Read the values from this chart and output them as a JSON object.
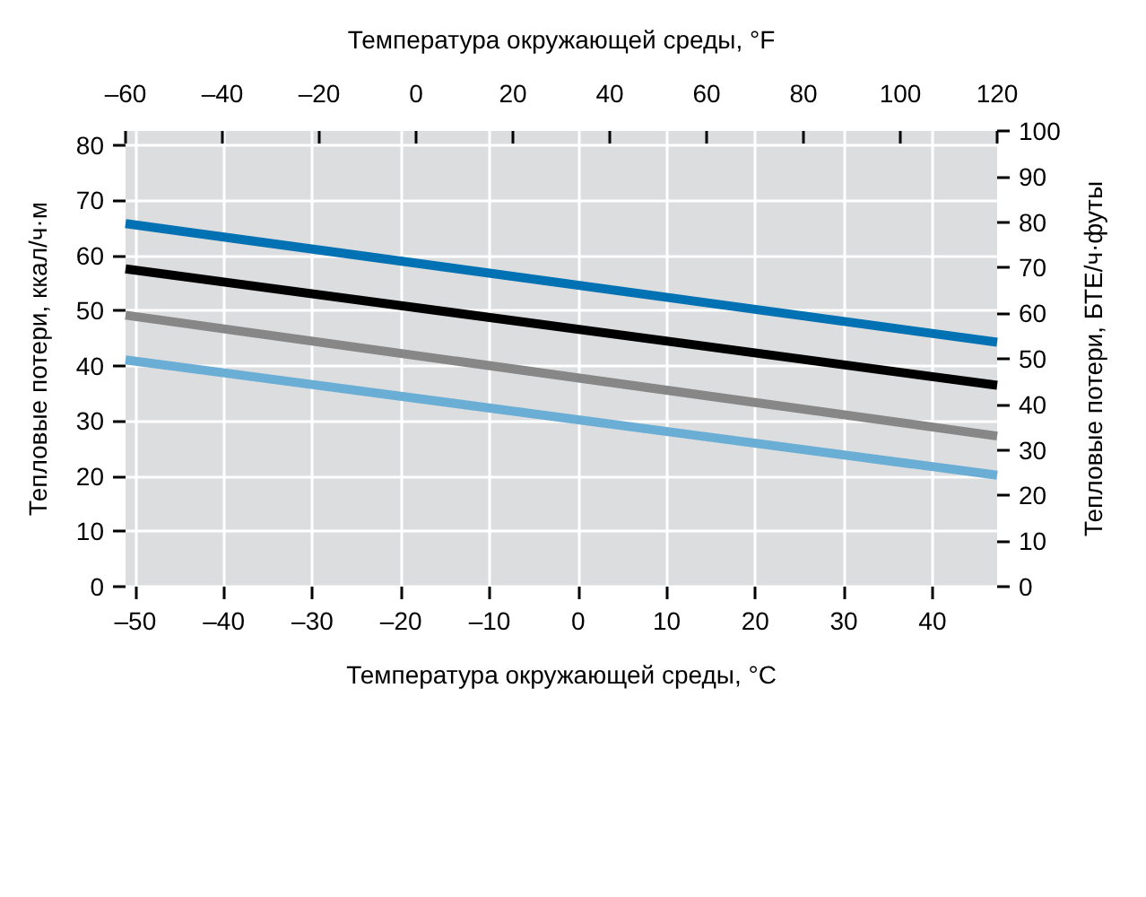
{
  "chart_data": {
    "type": "line",
    "xlabel": "Температура окружающей среды, °C",
    "x2label": "Температура окружающей среды, °F",
    "ylabel": "Тепловые потери, ккал/ч·м",
    "y2label": "Тепловые потери, БТЕ/ч·футы",
    "x": [
      -51.1,
      47.3
    ],
    "series": [
      {
        "color": "#0071b3",
        "values": [
          65.8,
          44.3
        ]
      },
      {
        "color": "#000000",
        "values": [
          57.6,
          36.5
        ]
      },
      {
        "color": "#878787",
        "values": [
          49.2,
          27.3
        ]
      },
      {
        "color": "#6aaed6",
        "values": [
          41.1,
          20.2
        ]
      }
    ],
    "xlim": [
      -51.1,
      47.3
    ],
    "xticks": [
      {
        "value": -50,
        "label": "–50"
      },
      {
        "value": -40,
        "label": "–40"
      },
      {
        "value": -30,
        "label": "–30"
      },
      {
        "value": -20,
        "label": "–20"
      },
      {
        "value": -10,
        "label": "–10"
      },
      0,
      10,
      20,
      30,
      40
    ],
    "x2lim": [
      -60,
      120
    ],
    "x2ticks": [
      {
        "value": -60,
        "label": "–60"
      },
      {
        "value": -40,
        "label": "–40"
      },
      {
        "value": -20,
        "label": "–20"
      },
      0,
      20,
      40,
      60,
      80,
      100,
      120
    ],
    "ylim": [
      0,
      82.6
    ],
    "yticks": [
      0,
      10,
      20,
      30,
      40,
      50,
      60,
      70,
      80
    ],
    "y2lim": [
      0,
      100
    ],
    "y2ticks": [
      0,
      10,
      20,
      30,
      40,
      50,
      60,
      70,
      80,
      90,
      100
    ],
    "grid": true,
    "marker": "none",
    "line_style": "solid"
  }
}
